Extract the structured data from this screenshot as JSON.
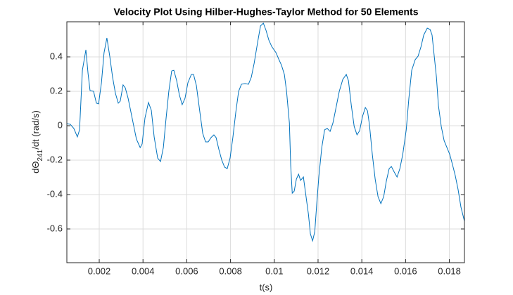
{
  "chart_data": {
    "type": "line",
    "title": "Velocity Plot Using Hilber-Hughes-Taylor Method for 50 Elements",
    "xlabel": "t(s)",
    "ylabel": [
      "dΘ",
      "241",
      "/dt  (rad/s)"
    ],
    "color": "#0072BD",
    "grid": true,
    "xlim": [
      0.00052,
      0.01869
    ],
    "ylim": [
      -0.796,
      0.604
    ],
    "xticks": [
      0.002,
      0.004,
      0.006,
      0.008,
      0.01,
      0.012,
      0.014,
      0.016,
      0.018
    ],
    "yticks": [
      -0.6,
      -0.4,
      -0.2,
      0,
      0.2,
      0.4
    ],
    "x": [
      0.00052,
      0.00068,
      0.00084,
      0.001,
      0.0011,
      0.00123,
      0.00139,
      0.00149,
      0.00158,
      0.00174,
      0.00187,
      0.00197,
      0.0021,
      0.00222,
      0.00235,
      0.00248,
      0.00261,
      0.00274,
      0.00287,
      0.00296,
      0.00309,
      0.00319,
      0.00332,
      0.00345,
      0.00358,
      0.0037,
      0.00387,
      0.00396,
      0.00409,
      0.00425,
      0.00438,
      0.00451,
      0.00467,
      0.0048,
      0.00493,
      0.00505,
      0.00518,
      0.00531,
      0.00541,
      0.00554,
      0.00566,
      0.00579,
      0.00592,
      0.00605,
      0.00621,
      0.00631,
      0.00644,
      0.0066,
      0.00673,
      0.00686,
      0.00698,
      0.00711,
      0.00724,
      0.00734,
      0.00747,
      0.0076,
      0.00773,
      0.00785,
      0.00798,
      0.00811,
      0.00824,
      0.00837,
      0.0085,
      0.00866,
      0.00882,
      0.00895,
      0.00908,
      0.00924,
      0.00937,
      0.0095,
      0.00962,
      0.00975,
      0.00988,
      0.01008,
      0.0102,
      0.01033,
      0.01046,
      0.01056,
      0.01069,
      0.01075,
      0.01082,
      0.01091,
      0.01101,
      0.01111,
      0.0112,
      0.01133,
      0.01143,
      0.01156,
      0.01165,
      0.01175,
      0.01185,
      0.01194,
      0.01204,
      0.01217,
      0.0123,
      0.01242,
      0.01255,
      0.01268,
      0.01281,
      0.01297,
      0.01313,
      0.01329,
      0.01339,
      0.01352,
      0.01365,
      0.01378,
      0.0139,
      0.01403,
      0.01416,
      0.01426,
      0.01435,
      0.01448,
      0.01461,
      0.01474,
      0.01487,
      0.015,
      0.01512,
      0.01525,
      0.01535,
      0.01548,
      0.01561,
      0.01574,
      0.01587,
      0.01603,
      0.01615,
      0.01628,
      0.01644,
      0.01657,
      0.0167,
      0.01683,
      0.01699,
      0.01712,
      0.01721,
      0.01731,
      0.01741,
      0.0175,
      0.01763,
      0.01776,
      0.01789,
      0.01802,
      0.01815,
      0.01827,
      0.0184,
      0.01853,
      0.01869
    ],
    "values": [
      0.012,
      0.008,
      -0.016,
      -0.065,
      -0.024,
      0.322,
      0.441,
      0.302,
      0.204,
      0.2,
      0.131,
      0.127,
      0.249,
      0.424,
      0.51,
      0.404,
      0.282,
      0.188,
      0.131,
      0.143,
      0.237,
      0.22,
      0.159,
      0.078,
      -0.004,
      -0.078,
      -0.127,
      -0.106,
      0.045,
      0.135,
      0.09,
      -0.065,
      -0.188,
      -0.208,
      -0.127,
      0.037,
      0.2,
      0.318,
      0.322,
      0.261,
      0.18,
      0.122,
      0.159,
      0.249,
      0.298,
      0.298,
      0.233,
      0.078,
      -0.045,
      -0.094,
      -0.094,
      -0.069,
      -0.053,
      -0.069,
      -0.139,
      -0.2,
      -0.241,
      -0.249,
      -0.188,
      -0.065,
      0.078,
      0.2,
      0.241,
      0.245,
      0.241,
      0.282,
      0.363,
      0.486,
      0.58,
      0.596,
      0.555,
      0.498,
      0.461,
      0.424,
      0.388,
      0.351,
      0.298,
      0.2,
      0.016,
      -0.229,
      -0.392,
      -0.38,
      -0.31,
      -0.282,
      -0.318,
      -0.298,
      -0.392,
      -0.514,
      -0.629,
      -0.669,
      -0.616,
      -0.453,
      -0.29,
      -0.127,
      -0.024,
      -0.016,
      -0.033,
      0.016,
      0.098,
      0.2,
      0.269,
      0.298,
      0.261,
      0.118,
      -0.004,
      -0.053,
      -0.029,
      0.053,
      0.106,
      0.086,
      0.004,
      -0.167,
      -0.31,
      -0.412,
      -0.453,
      -0.412,
      -0.322,
      -0.249,
      -0.237,
      -0.269,
      -0.298,
      -0.249,
      -0.167,
      -0.024,
      0.159,
      0.322,
      0.384,
      0.404,
      0.457,
      0.527,
      0.567,
      0.559,
      0.527,
      0.404,
      0.282,
      0.118,
      -0.004,
      -0.086,
      -0.127,
      -0.167,
      -0.229,
      -0.29,
      -0.371,
      -0.473,
      -0.555
    ]
  }
}
